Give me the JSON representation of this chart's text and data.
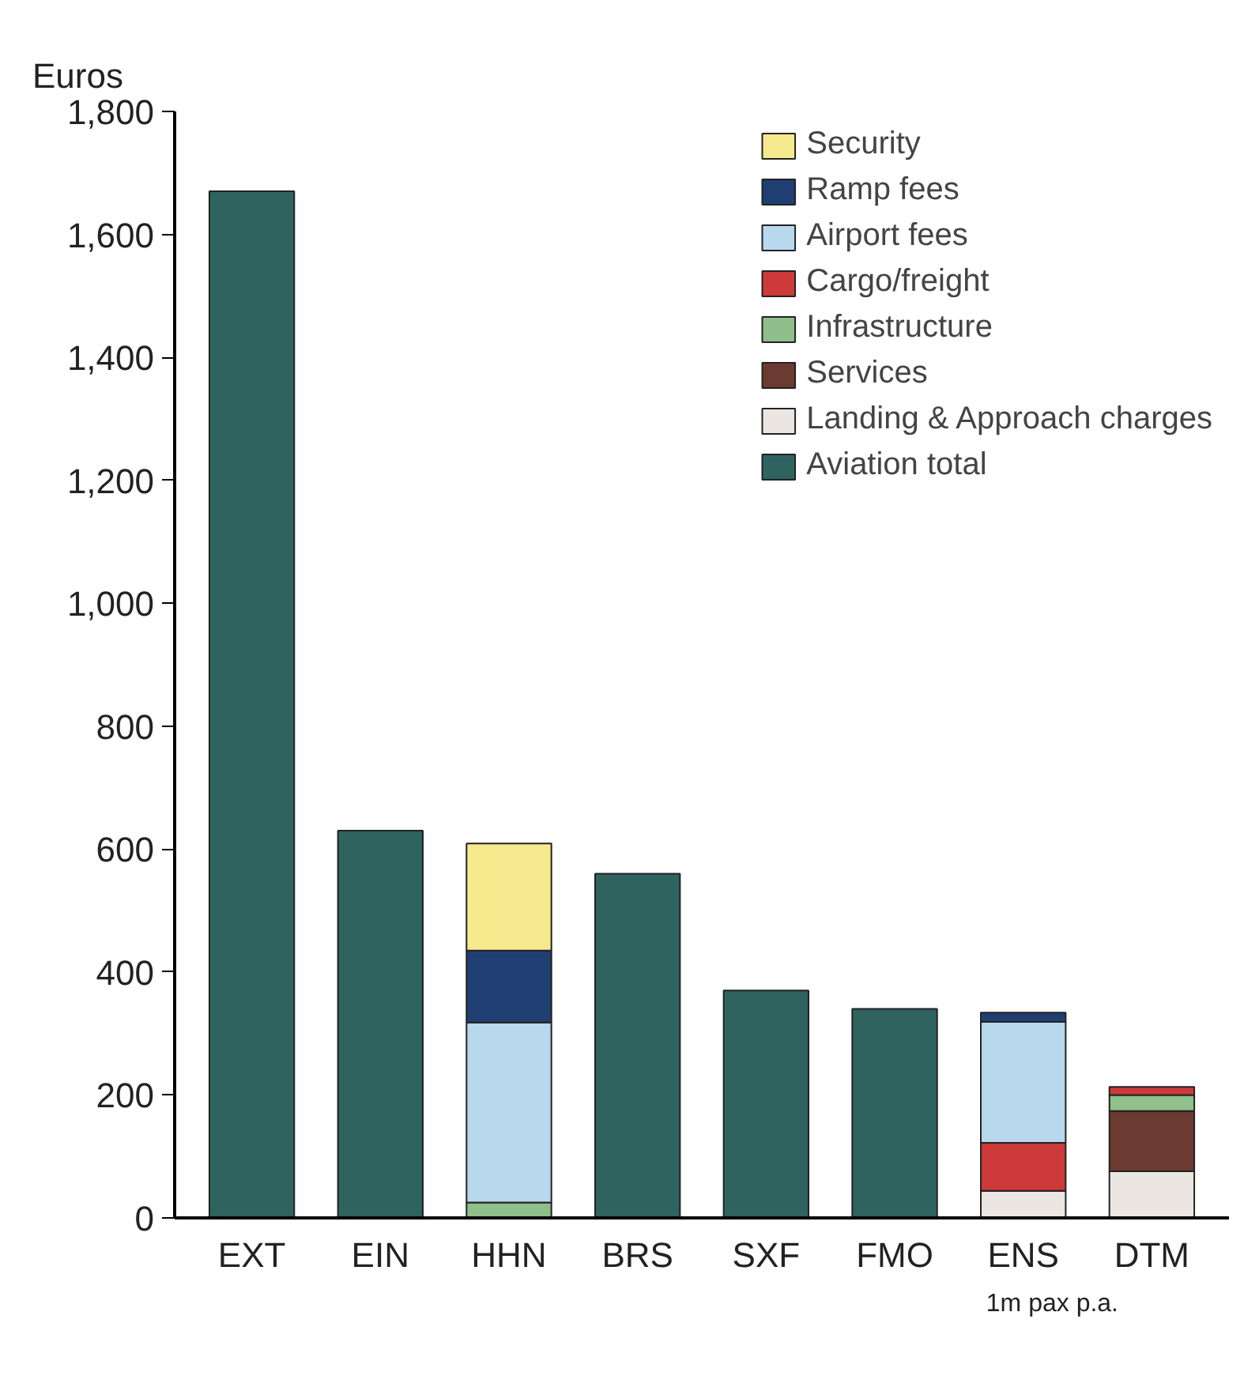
{
  "chart_data": {
    "type": "bar",
    "stacked": true,
    "ylabel": "Euros",
    "categories": [
      "EXT",
      "EIN",
      "HHN",
      "BRS",
      "SXF",
      "FMO",
      "ENS",
      "DTM"
    ],
    "series": [
      {
        "name": "Aviation total",
        "color": "#2f6360",
        "values": [
          1670,
          630,
          null,
          560,
          370,
          340,
          null,
          null
        ]
      },
      {
        "name": "Landing & Approach charges",
        "color": "#ece6e2",
        "values": [
          null,
          null,
          null,
          null,
          null,
          null,
          44,
          76
        ]
      },
      {
        "name": "Services",
        "color": "#6b3a30",
        "values": [
          null,
          null,
          null,
          null,
          null,
          null,
          null,
          98
        ]
      },
      {
        "name": "Infrastructure",
        "color": "#8fbf8a",
        "values": [
          null,
          null,
          25,
          null,
          null,
          null,
          null,
          26
        ]
      },
      {
        "name": "Cargo/freight",
        "color": "#cc3a3a",
        "values": [
          null,
          null,
          null,
          null,
          null,
          null,
          78,
          13
        ]
      },
      {
        "name": "Airport fees",
        "color": "#b8d8ee",
        "values": [
          null,
          null,
          293,
          null,
          null,
          null,
          197,
          null
        ]
      },
      {
        "name": "Ramp fees",
        "color": "#1f3f73",
        "values": [
          null,
          null,
          117,
          null,
          null,
          null,
          15,
          null
        ]
      },
      {
        "name": "Security",
        "color": "#f7e98e",
        "values": [
          null,
          null,
          174,
          null,
          null,
          null,
          null,
          null
        ]
      }
    ],
    "ylim": [
      0,
      1800
    ],
    "yticks": [
      0,
      {
        "value": 200,
        "label": "200"
      },
      {
        "value": 400,
        "label": "400"
      },
      {
        "value": 600,
        "label": "600"
      },
      {
        "value": 800,
        "label": "800"
      },
      {
        "value": 1000,
        "label": "1,000"
      },
      {
        "value": 1200,
        "label": "1,200"
      },
      {
        "value": 1400,
        "label": "1,400"
      },
      {
        "value": 1600,
        "label": "1,600"
      },
      {
        "value": 1800,
        "label": "1,800"
      }
    ],
    "grid": false,
    "legend": "top right",
    "annotations": [
      "1m pax p.a."
    ]
  }
}
